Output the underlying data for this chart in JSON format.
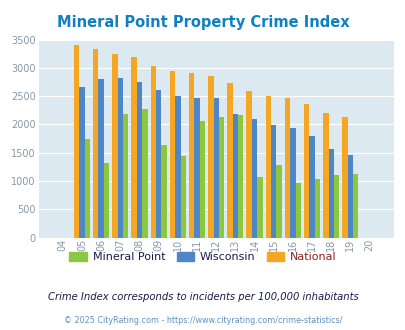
{
  "title": "Mineral Point Property Crime Index",
  "years": [
    "04",
    "05",
    "06",
    "07",
    "08",
    "09",
    "10",
    "11",
    "12",
    "13",
    "14",
    "15",
    "16",
    "17",
    "18",
    "19",
    "20"
  ],
  "mineral_point": [
    0,
    1750,
    1320,
    2180,
    2270,
    1630,
    1450,
    2060,
    2130,
    2160,
    1080,
    1290,
    970,
    1040,
    1110,
    1120,
    0
  ],
  "wisconsin": [
    0,
    2670,
    2800,
    2830,
    2750,
    2610,
    2500,
    2460,
    2460,
    2180,
    2090,
    1990,
    1940,
    1790,
    1560,
    1460,
    0
  ],
  "national": [
    0,
    3410,
    3330,
    3250,
    3200,
    3040,
    2950,
    2910,
    2860,
    2730,
    2600,
    2500,
    2460,
    2370,
    2210,
    2130,
    0
  ],
  "mineral_point_color": "#8dc63f",
  "wisconsin_color": "#4f86c6",
  "national_color": "#f5a623",
  "bg_color": "#dce9f0",
  "ylim": [
    0,
    3500
  ],
  "yticks": [
    0,
    500,
    1000,
    1500,
    2000,
    2500,
    3000,
    3500
  ],
  "title_color": "#1080c0",
  "subtitle": "Crime Index corresponds to incidents per 100,000 inhabitants",
  "footer": "© 2025 CityRating.com - https://www.cityrating.com/crime-statistics/",
  "subtitle_color": "#1a1a4e",
  "footer_color": "#6090c0",
  "legend_labels": [
    "Mineral Point",
    "Wisconsin",
    "National"
  ],
  "legend_text_color": "#1a1a4e",
  "national_legend_color": "#8b4513"
}
